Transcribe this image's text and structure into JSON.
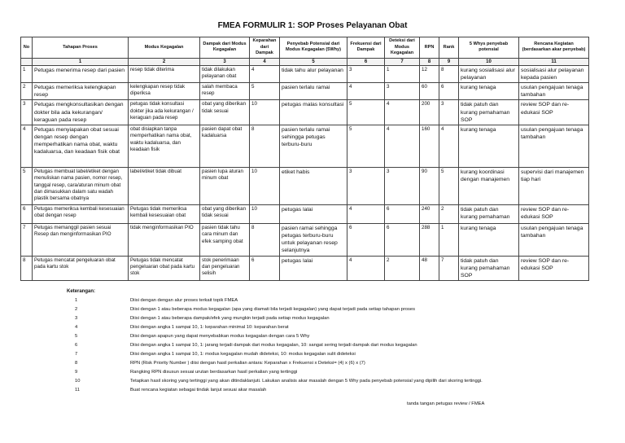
{
  "title": "FMEA FORMULIR 1:  SOP  Proses Pelayanan Obat",
  "headers": [
    "No",
    "Tahapan Proses",
    "Modus Kegagalan",
    "Dampak dari Modus Kegagalan",
    "Keparahan dari Dampak",
    "Penyebab Potensial dari Modus Kegagalan (5Why)",
    "Frekuensi dari Dampak",
    "Deteksi dari Modus Kegagalan",
    "RPN",
    "Rank",
    "5 Whys penyebab potensial",
    "Rencana Kegiatan (berdasarkan akar penyebab)"
  ],
  "col_numbers": [
    "",
    "1",
    "2",
    "3",
    "4",
    "5",
    "6",
    "7",
    "8",
    "9",
    "10",
    "11"
  ],
  "rows": [
    [
      "1",
      "Petugas menerima resep dari pasien",
      "resep tidak diterima",
      "tidak dilakukan pelayanan obat",
      "4",
      "tidak tahu alur pelayanan",
      "3",
      "1",
      "12",
      "8",
      "kurang sosialisasi alur pelayanan",
      "sosialisasi alur pelayanan kepada pasien"
    ],
    [
      "2",
      "Petugas memeriksa kelengkapan resep",
      "kelengkapan resep tidak diperiksa",
      "salah membaca resep",
      "5",
      "pasien terlalu ramai",
      "4",
      "3",
      "60",
      "6",
      "kurang tenaga",
      "usulan pengajuan tenaga tambahan"
    ],
    [
      "3",
      "Petugas mengkonsultasikan dengan dokter bila ada kekurangan/ keraguan pada resep",
      "petugas tidak konsultasi dokter jika ada kekurangan / keraguan pada resep",
      "obat yang diberikan tidak sesuai",
      "10",
      "petugas malas konsultasi",
      "5",
      "4",
      "200",
      "3",
      "tidak patuh dan kurang pemahaman SOP",
      "review SOP dan re-edukasi SOP"
    ],
    [
      "4",
      "Petugas menyiapakan obat sesuai dengan resep dengan memperhatikan nama obat, waktu kadaluarsa, dan keadaan fisik obat",
      "obat disiapkan tanpa memperhatikan nama obat, waktu kadaluarsa, dan keadaan fisik",
      "pasien dapat obat kadaluarsa",
      "8",
      "pasien terlalu ramai sehingga petugas terburu-buru",
      "5",
      "4",
      "160",
      "4",
      "kurang tenaga",
      "usulan pengajuan tenaga tambahan"
    ],
    [
      "5",
      "Petugas membuat label/etiket dengan menuliskan nama pasien, nomor resep, tanggal resep, cara/aturan minum obat dan dimasukkan dalam satu wadah plastik bersama obatnya",
      "label/etiket tidak dibuat",
      "pasien lupa aturan minum obat",
      "10",
      "etiket habis",
      "3",
      "3",
      "90",
      "5",
      "kurang koordinasi dengan manajemen",
      "supervisi dari manajemen tiap hari"
    ],
    [
      "6",
      "Petugas memeriksa kembali kesesuaian obat dengan resep",
      "Petugas tidak memeriksa kembali kesesuaian obat",
      "obat yang diberikan tidak sesuai",
      "10",
      "petugas lalai",
      "4",
      "6",
      "240",
      "2",
      "tidak patuh dan kurang pemahaman",
      "review SOP dan re-edukasi SOP"
    ],
    [
      "7",
      "Petugas memanggil pasien sesuai Resep dan menginformasikan PIO",
      "tidak menginformasikan PIO",
      "pasien tidak tahu cara minum dan efek samping obat",
      "8",
      "pasien ramai sehingga petugas terburu-buru untuk pelayanan resep selanjutnya",
      "6",
      "6",
      "288",
      "1",
      "kurang tenaga",
      "usulan pengajuan tenaga tambahan"
    ],
    [
      "8",
      "Petugas mencatat pengeluaran obat pada kartu stok",
      "Petugas tidak mencatat pengeluaran obat pada kartu stok",
      "stok penerimaan dan pengeluaran selisih",
      "6",
      "petugas lalai",
      "4",
      "2",
      "48",
      "7",
      "tidak patuh dan kurang pemahaman SOP",
      "review SOP dan re-edukasi SOP"
    ]
  ],
  "keterangan_label": "Keterangan:",
  "notes": [
    [
      "1",
      "Diisi dengan dengan alur proses terkait topik FMEA"
    ],
    [
      "2",
      "Diisi dengan 1 atau beberapa modus kegagalan (apa yang diamati bila terjadi kegagalan) yang dapat terjadi pada setiap tahapan proses"
    ],
    [
      "3",
      "Diisi dengan 1 atau beberapa dampak/efek yang mungkin terjadi pada setiap modus kegagalan"
    ],
    [
      "4",
      "Diisi dengan angka 1 sampai 10, 1: keparahan minimal 10: keparahan berat"
    ],
    [
      "5",
      "Diisi dengan apapun yang dapat menyebabkan modus kegagalan dengan cara 5 Why"
    ],
    [
      "6",
      "Diisi dengan angka 1 sampai 10, 1: jarang terjadi dampak dari modus kegagalan, 10: sangat sering terjadi dampak dari modus kegagalan"
    ],
    [
      "7",
      "Diisi dengan angka 1 sampai 10, 1: modus kegagalan mudah dideteksi, 10: modus kegagalan sulit dideteksi"
    ],
    [
      "8",
      "RPN (Risk Priority Number ) diisi dengan hasil perkalian antara: Keparahan x Frekuensi x Deteksi= (4) x (6) x (7)"
    ],
    [
      "9",
      "Rangking RPN disusun sesuai urutan berdasarkan hasil perkalian yang tertinggi"
    ],
    [
      "10",
      "Tetapkan hasil skoring yang tertinggi yang akan ditindaklanjuti. Lakukan analisis akar masalah dengan 5 Why pada penyebab potensial yang dipilih dari skoring tertinggi."
    ],
    [
      "11",
      "Buat rencana kegiatan sebagai tindak lanjut sesuai akar masalah"
    ]
  ],
  "signature": "tanda tangan petugas review / FMEA"
}
